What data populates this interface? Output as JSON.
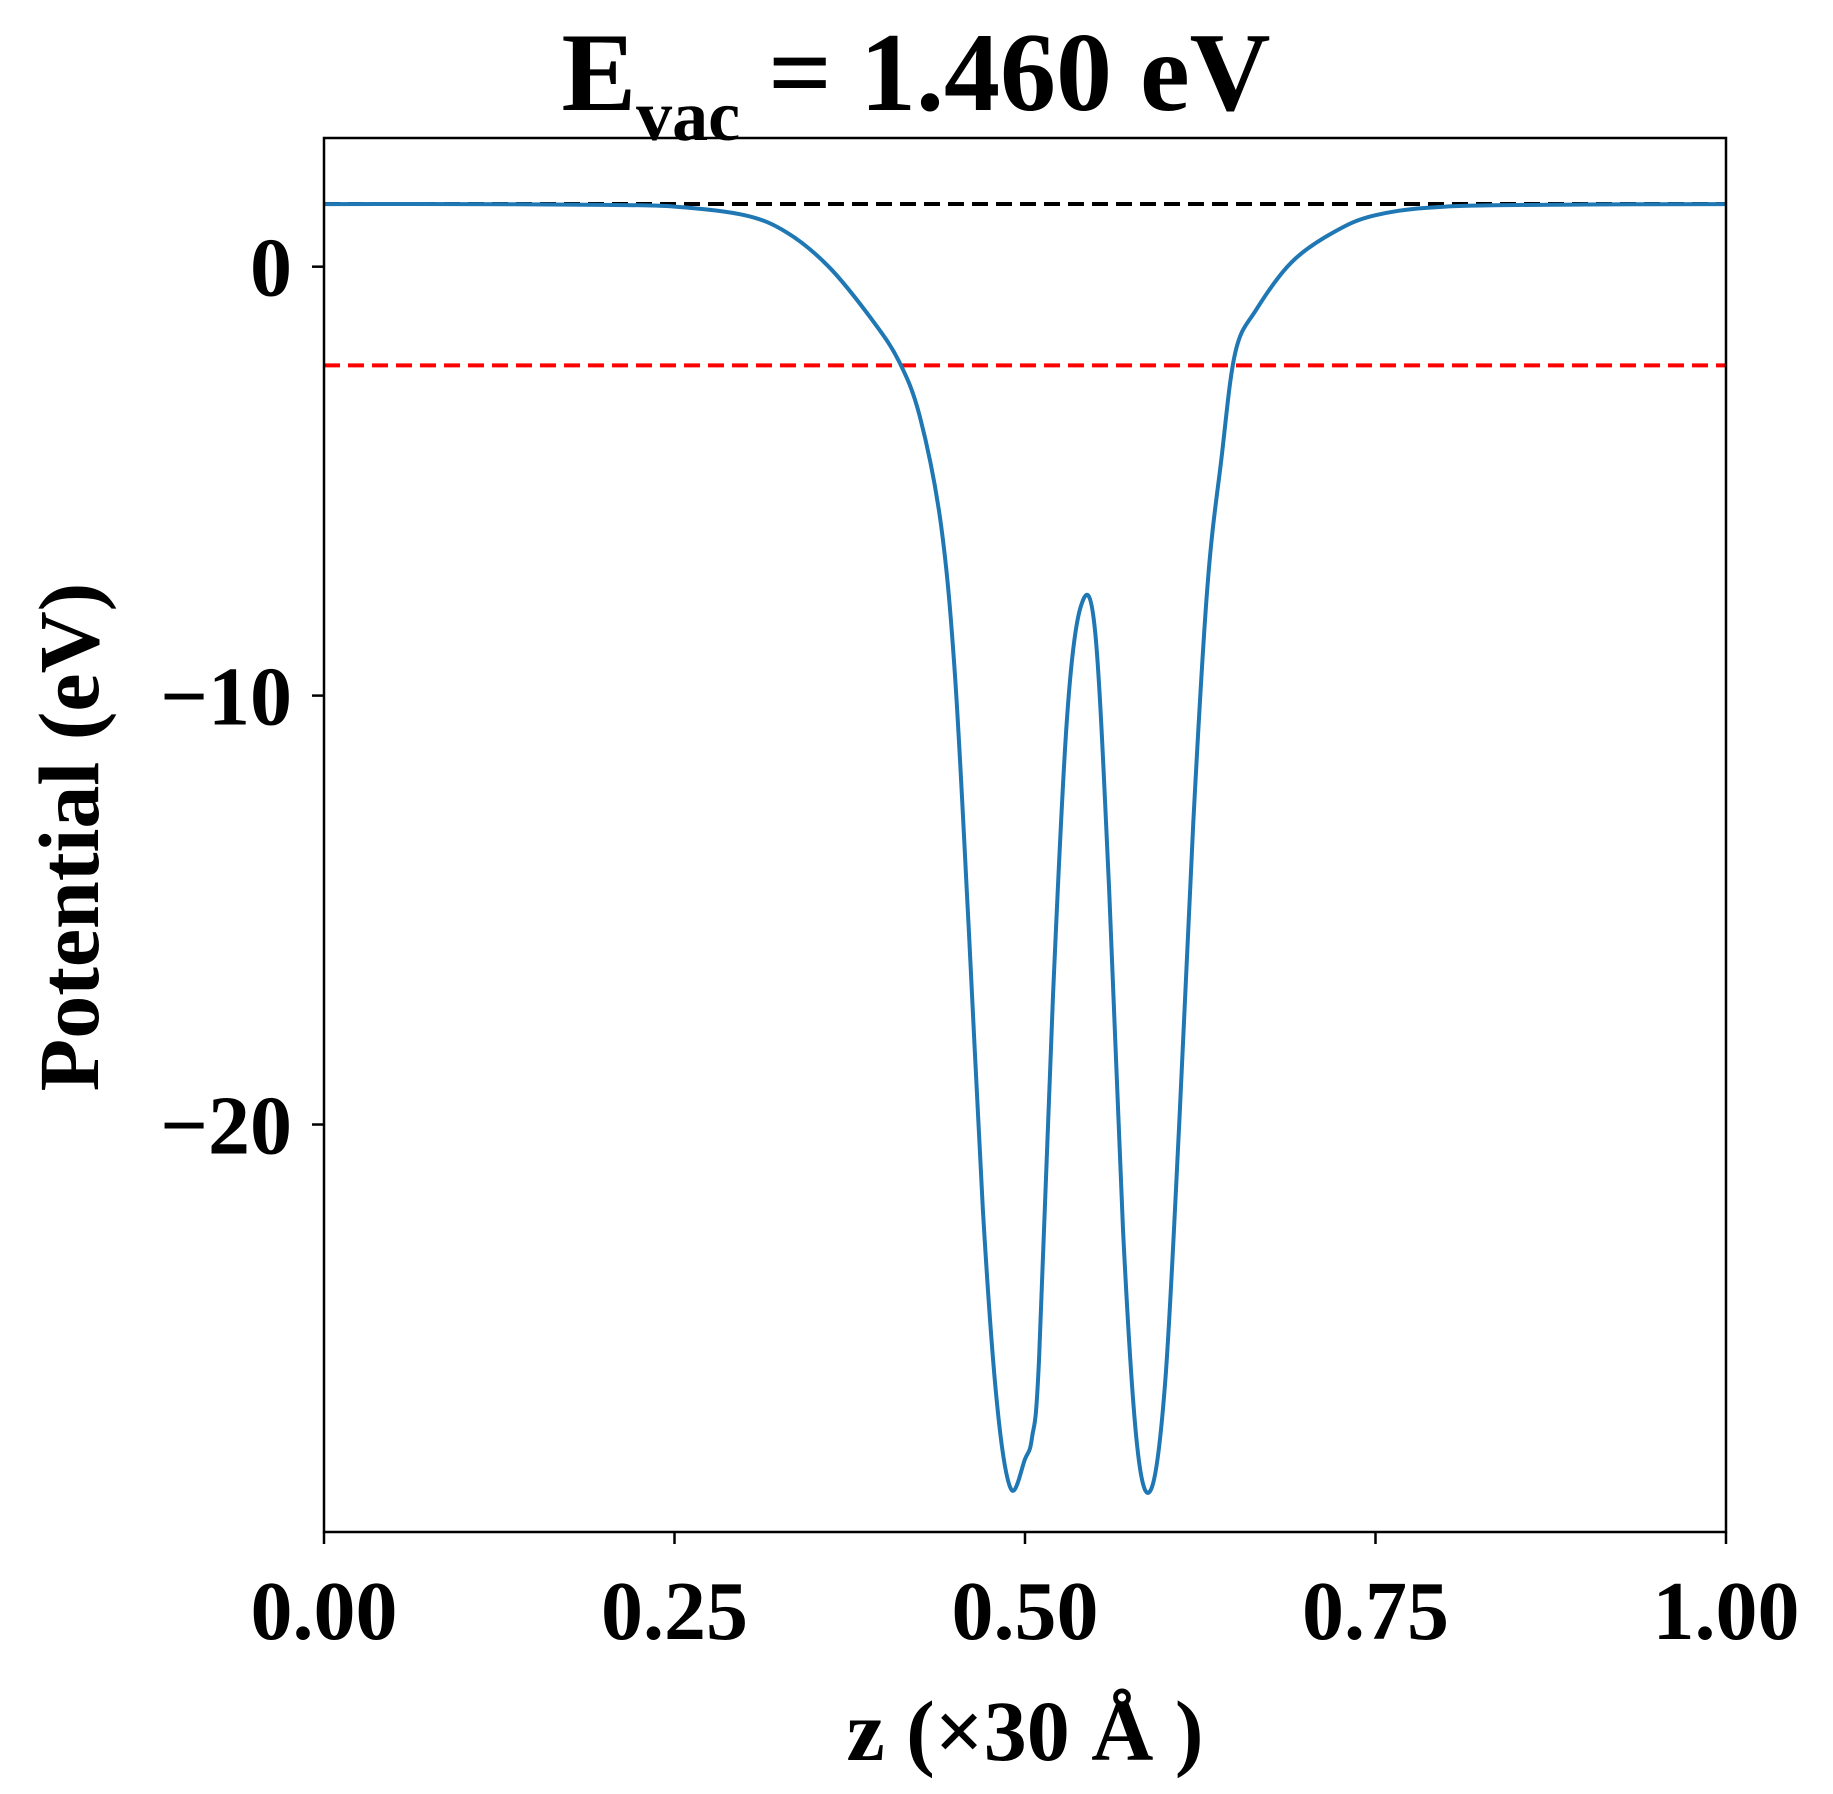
{
  "chart_data": {
    "type": "line",
    "title_main": "E",
    "title_sub": "vac",
    "title_rest": " = 1.460 eV",
    "xlabel": "z (×30 Å )",
    "ylabel": "Potential (eV)",
    "xlim": [
      0,
      1
    ],
    "ylim": [
      -29.5,
      3.0
    ],
    "xticks": [
      0.0,
      0.25,
      0.5,
      0.75,
      1.0
    ],
    "xtick_labels": [
      "0.00",
      "0.25",
      "0.50",
      "0.75",
      "1.00"
    ],
    "yticks": [
      0,
      -10,
      -20
    ],
    "ytick_labels": [
      "0",
      "−10",
      "−20"
    ],
    "grid": false,
    "reference_lines": [
      {
        "y": 1.46,
        "color": "#000000",
        "style": "dashed"
      },
      {
        "y": -2.3,
        "color": "#ff0000",
        "style": "dashed"
      }
    ],
    "series": [
      {
        "color": "#1f77b4",
        "x": [
          0.0,
          0.1,
          0.2,
          0.25,
          0.3,
          0.33,
          0.36,
          0.39,
          0.41,
          0.425,
          0.44,
          0.45,
          0.46,
          0.47,
          0.48,
          0.49,
          0.5,
          0.505,
          0.51,
          0.52,
          0.53,
          0.54,
          0.55,
          0.56,
          0.57,
          0.58,
          0.59,
          0.6,
          0.61,
          0.62,
          0.63,
          0.64,
          0.65,
          0.665,
          0.69,
          0.72,
          0.75,
          0.8,
          0.9,
          1.0
        ],
        "y": [
          1.46,
          1.46,
          1.44,
          1.4,
          1.2,
          0.8,
          0.0,
          -1.2,
          -2.2,
          -3.5,
          -6.0,
          -9.5,
          -15.5,
          -22.0,
          -26.5,
          -28.5,
          -27.8,
          -27.3,
          -25.5,
          -17.0,
          -10.5,
          -7.9,
          -8.5,
          -14.5,
          -22.5,
          -27.5,
          -28.5,
          -26.0,
          -20.0,
          -13.0,
          -7.5,
          -4.5,
          -2.0,
          -1.0,
          0.1,
          0.8,
          1.2,
          1.4,
          1.45,
          1.46
        ]
      }
    ]
  }
}
